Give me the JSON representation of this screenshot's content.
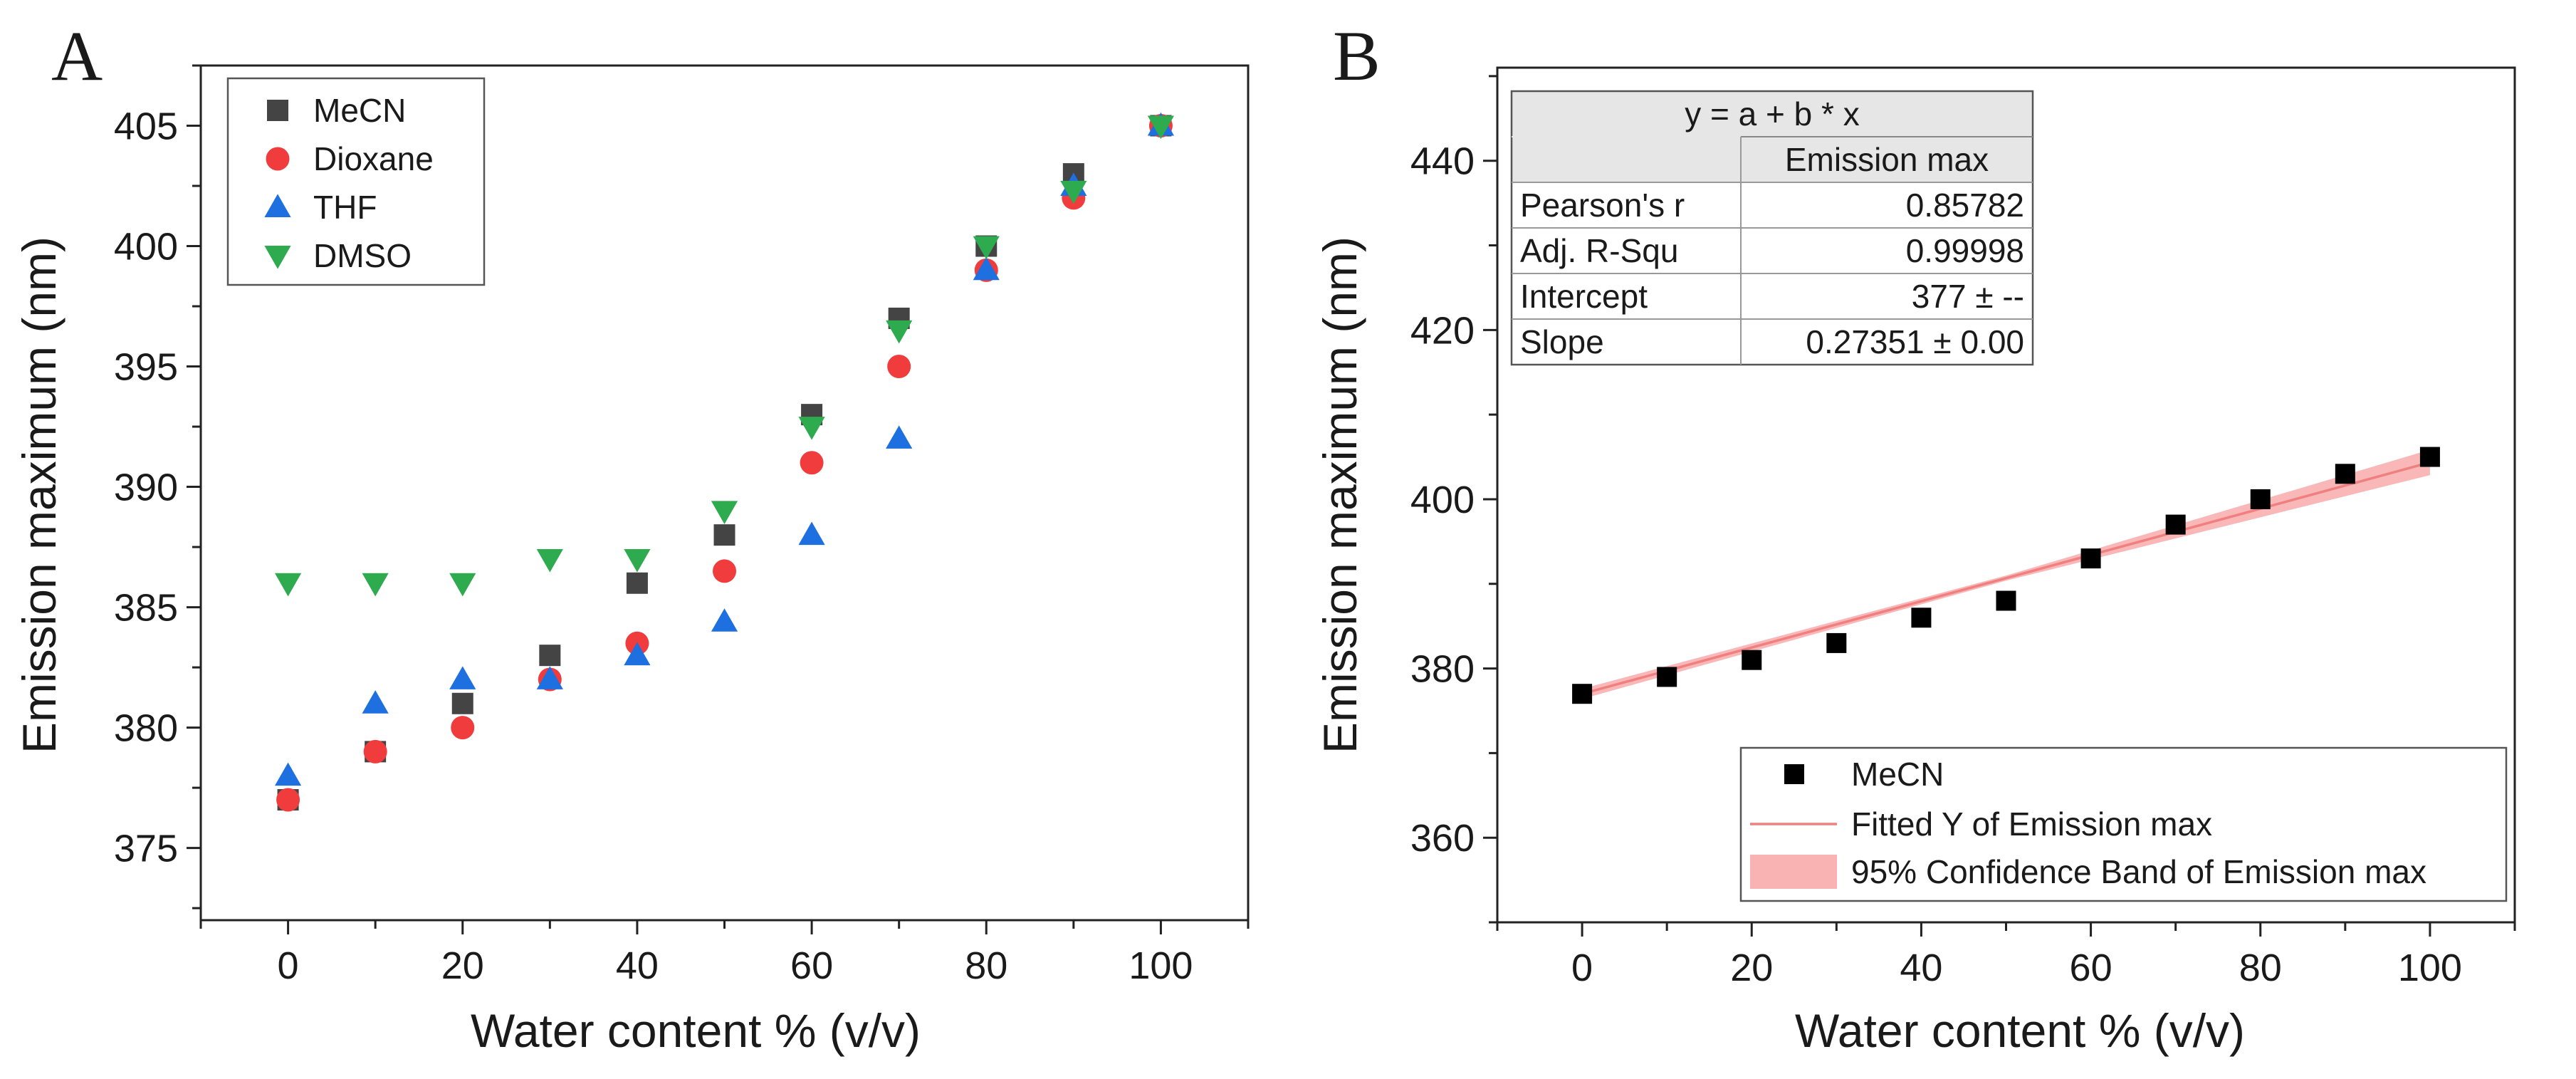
{
  "chart_data": [
    {
      "panel": "A",
      "type": "scatter",
      "xlabel": "Water content % (v/v)",
      "ylabel": "Emission maximum (nm)",
      "xlim": [
        -10,
        110
      ],
      "ylim": [
        372,
        407.5
      ],
      "xticks": [
        0,
        20,
        40,
        60,
        80,
        100
      ],
      "yticks": [
        375,
        380,
        385,
        390,
        395,
        400,
        405
      ],
      "legend_position": "top-left",
      "x": [
        0,
        10,
        20,
        30,
        40,
        50,
        60,
        70,
        80,
        90,
        100
      ],
      "series": [
        {
          "name": "MeCN",
          "marker": "square",
          "color": "#444444",
          "values": [
            377,
            379,
            381,
            383,
            386,
            388,
            393,
            397,
            400,
            403,
            405
          ]
        },
        {
          "name": "Dioxane",
          "marker": "circle",
          "color": "#f03c3c",
          "values": [
            377,
            379,
            380,
            382,
            383.5,
            386.5,
            391,
            395,
            399,
            402,
            405
          ]
        },
        {
          "name": "THF",
          "marker": "triangle-up",
          "color": "#1e6fe0",
          "values": [
            378,
            381,
            382,
            382,
            383,
            384.4,
            388,
            392,
            399,
            402.5,
            405
          ]
        },
        {
          "name": "DMSO",
          "marker": "triangle-down",
          "color": "#2eaa4f",
          "values": [
            386,
            386,
            386,
            387,
            387,
            389,
            392.5,
            396.5,
            400,
            402.3,
            405
          ]
        }
      ]
    },
    {
      "panel": "B",
      "type": "scatter",
      "xlabel": "Water content % (v/v)",
      "ylabel": "Emission maximum (nm)",
      "xlim": [
        -10,
        110
      ],
      "ylim": [
        350,
        451
      ],
      "xticks": [
        0,
        20,
        40,
        60,
        80,
        100
      ],
      "yticks": [
        360,
        380,
        400,
        420,
        440
      ],
      "legend_position": "bottom-right",
      "x": [
        0,
        10,
        20,
        30,
        40,
        50,
        60,
        70,
        80,
        90,
        100
      ],
      "series": [
        {
          "name": "MeCN",
          "marker": "square",
          "color": "#000000",
          "values": [
            377,
            379,
            381,
            383,
            386,
            388,
            393,
            397,
            400,
            403,
            405
          ]
        }
      ],
      "fit": {
        "name": "Fitted Y of Emission max",
        "color": "#f08080",
        "intercept": 377,
        "slope": 0.27351,
        "band_name": "95% Confidence Band of Emission max",
        "band_color": "#f9b3b3",
        "band_halfwidth_at_x": [
          [
            0,
            0.6
          ],
          [
            50,
            0.3
          ],
          [
            100,
            1.5
          ]
        ]
      },
      "stats_table": {
        "equation": "y = a + b * x",
        "column_header": "Emission max",
        "rows": [
          {
            "label": "Pearson's r",
            "value": "0.85782"
          },
          {
            "label": "Adj. R-Squ",
            "value": "0.99998"
          },
          {
            "label": "Intercept",
            "value": "377 ± --"
          },
          {
            "label": "Slope",
            "value": "0.27351 ± 0.00"
          }
        ]
      }
    }
  ]
}
